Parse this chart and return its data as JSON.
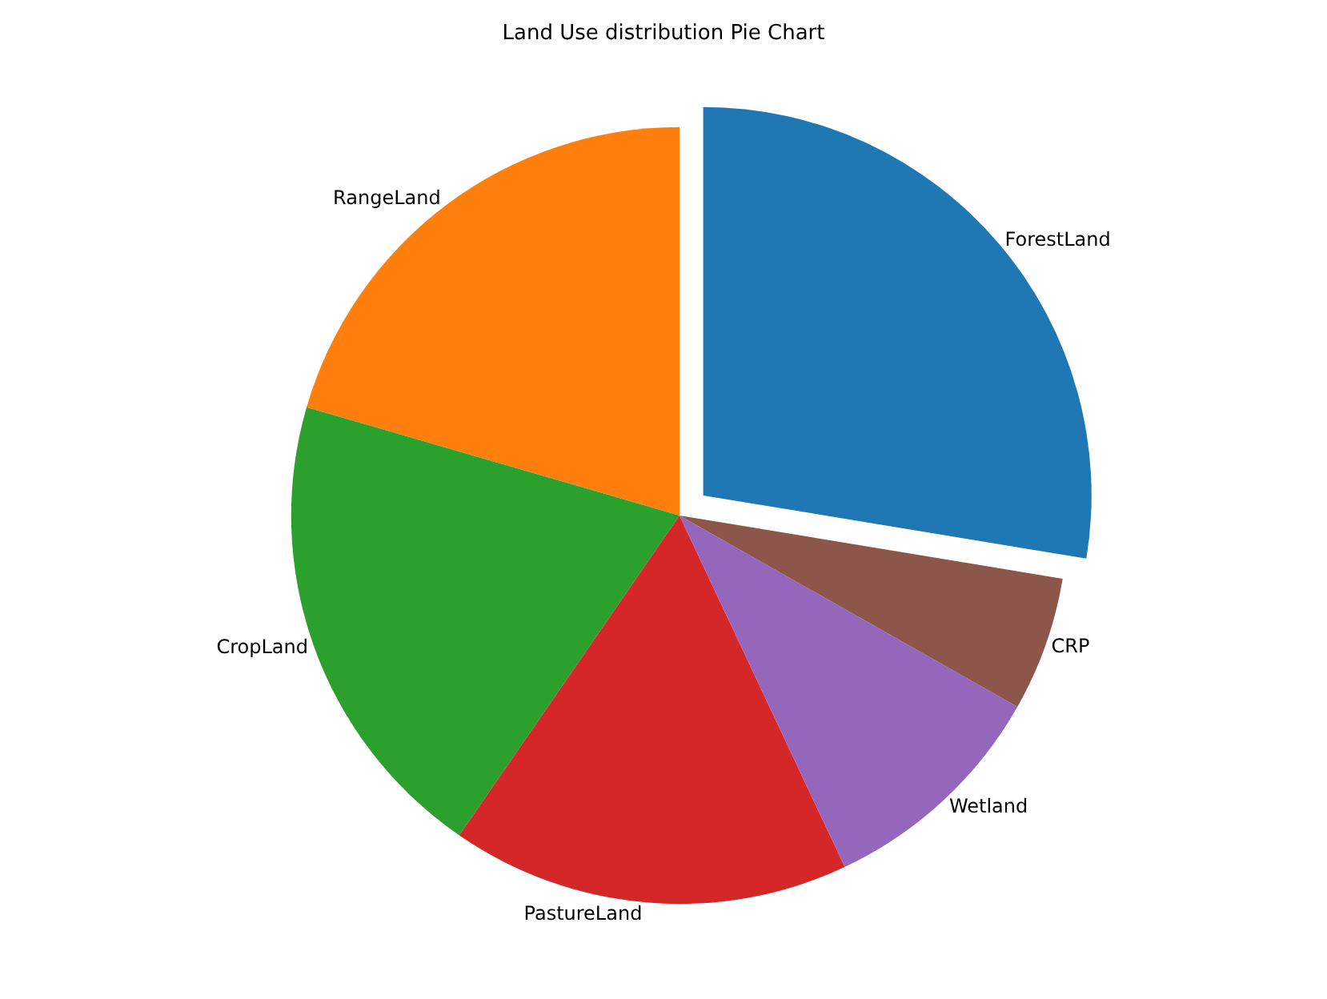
{
  "chart_data": {
    "type": "pie",
    "title": "Land Use distribution Pie Chart",
    "categories": [
      "ForestLand",
      "RangeLand",
      "CropLand",
      "PastureLand",
      "Wetland",
      "CRP"
    ],
    "values": [
      27.6,
      20.5,
      19.9,
      16.6,
      9.8,
      5.6
    ],
    "colors": [
      "#1f77b4",
      "#ff7f0e",
      "#2ca02c",
      "#d62728",
      "#9467bd",
      "#8c564b"
    ],
    "legend": false
  }
}
